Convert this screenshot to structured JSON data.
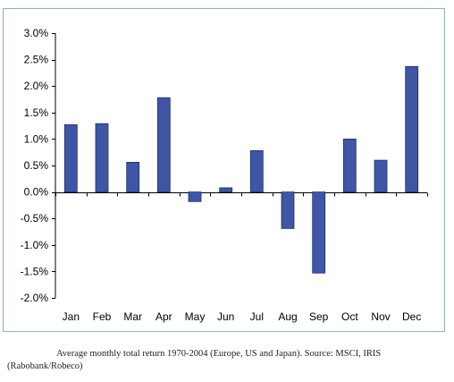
{
  "chart_data": {
    "type": "bar",
    "categories": [
      "Jan",
      "Feb",
      "Mar",
      "Apr",
      "May",
      "Jun",
      "Jul",
      "Aug",
      "Sep",
      "Oct",
      "Nov",
      "Dec"
    ],
    "values": [
      1.27,
      1.29,
      0.56,
      1.78,
      -0.18,
      0.08,
      0.78,
      -0.69,
      -1.53,
      1.0,
      0.6,
      2.37
    ],
    "yticks": [
      "3.0%",
      "2.5%",
      "2.0%",
      "1.5%",
      "1.0%",
      "0.5%",
      "0.0%",
      "-0.5%",
      "-1.0%",
      "-1.5%",
      "-2.0%"
    ],
    "ylim": [
      -2.0,
      3.0
    ],
    "grid": false,
    "legend": "none",
    "bar_color": "#3f56a6"
  },
  "caption": "Average monthly total return 1970-2004 (Europe, US and Japan). Source: MSCI, IRIS (Rabobank/Robeco)"
}
